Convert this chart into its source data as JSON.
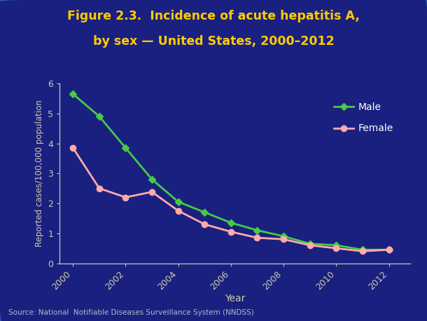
{
  "title_line1": "Figure 2.3.  Incidence of acute hepatitis A,",
  "title_line2": "by sex — United States, 2000–2012",
  "years": [
    2000,
    2001,
    2002,
    2003,
    2004,
    2005,
    2006,
    2007,
    2008,
    2009,
    2010,
    2011,
    2012
  ],
  "male": [
    5.65,
    4.9,
    3.85,
    2.8,
    2.05,
    1.7,
    1.35,
    1.1,
    0.9,
    0.65,
    0.6,
    0.45,
    0.45
  ],
  "female": [
    3.85,
    2.5,
    2.2,
    2.38,
    1.75,
    1.3,
    1.05,
    0.85,
    0.8,
    0.6,
    0.5,
    0.4,
    0.45
  ],
  "male_color": "#44cc44",
  "female_color": "#ffaaaa",
  "xlabel": "Year",
  "ylabel": "Reported cases/100,000 population",
  "ylim": [
    0,
    6
  ],
  "yticks": [
    0,
    1,
    2,
    3,
    4,
    5,
    6
  ],
  "bg_color": "#1a2080",
  "plot_bg_color": "#1a2080",
  "title_color": "#ffcc00",
  "axis_color": "#bbbbaa",
  "tick_color": "#ccccaa",
  "label_color": "#ccccaa",
  "legend_label_color": "white",
  "source_text": "Source: National  Notifiable Diseases Surveillance System (NNDSS)",
  "source_color": "#aabbcc"
}
